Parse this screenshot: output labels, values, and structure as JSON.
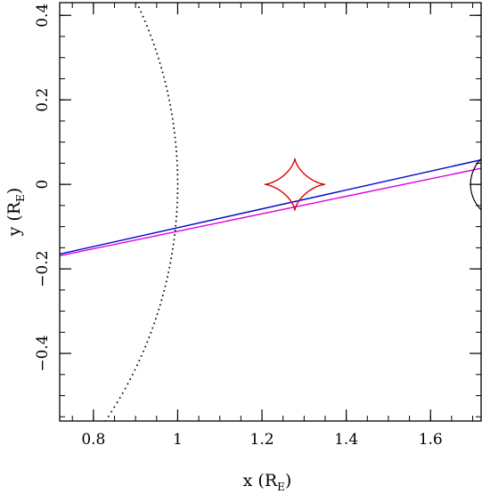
{
  "chart_data": {
    "type": "line",
    "title": "",
    "xlabel": "x (R",
    "xlabel_sub": "E",
    "xlabel_close": ")",
    "ylabel": "y (R",
    "ylabel_sub": "E",
    "ylabel_close": ")",
    "xlim": [
      0.72,
      1.72
    ],
    "ylim": [
      -0.56,
      0.43
    ],
    "xticks": [
      0.8,
      1,
      1.2,
      1.4,
      1.6
    ],
    "xtick_labels": [
      "0.8",
      "1",
      "1.2",
      "1.4",
      "1.6"
    ],
    "yticks": [
      -0.4,
      -0.2,
      0,
      0.2,
      0.4
    ],
    "ytick_labels": [
      "−0.4",
      "−0.2",
      "0",
      "0.2",
      "0.4"
    ],
    "xminor_step": 0.05,
    "yminor_step": 0.05,
    "grid": false,
    "series": [
      {
        "style": "line",
        "color": "#0000cc",
        "x": [
          0.72,
          1.72
        ],
        "y": [
          -0.165,
          0.058
        ]
      },
      {
        "style": "line",
        "color": "#dd00dd",
        "x": [
          0.72,
          1.72
        ],
        "y": [
          -0.169,
          0.038
        ]
      },
      {
        "style": "dotted-arc",
        "color": "#000000",
        "center": [
          0,
          0
        ],
        "radius": 1.0,
        "y_range": [
          -0.56,
          0.43
        ]
      },
      {
        "style": "astroid",
        "color": "#dd0000",
        "center": [
          1.278,
          0.0
        ],
        "half_width": 0.072,
        "half_height": 0.062
      },
      {
        "style": "arc",
        "color": "#000000",
        "center": [
          1.78,
          0.0
        ],
        "radius": 0.085,
        "y_range": [
          -0.085,
          0.085
        ]
      }
    ]
  }
}
